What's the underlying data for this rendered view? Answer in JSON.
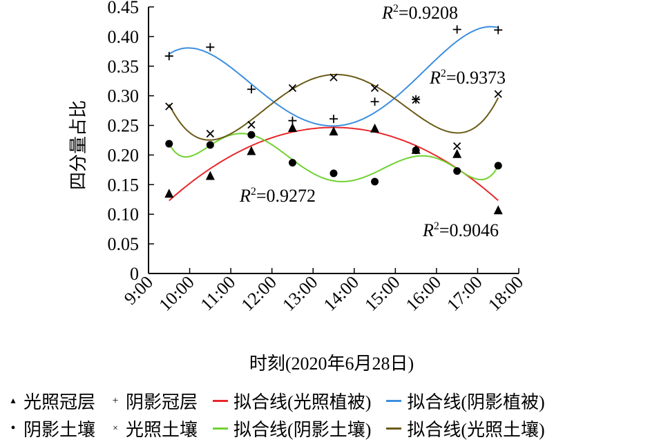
{
  "chart_data": {
    "type": "scatter",
    "xlabel": "时刻(2020年6月28日)",
    "ylabel": "四分量占比",
    "x_ticks": [
      "9:00",
      "10:00",
      "11:00",
      "12:00",
      "13:00",
      "14:00",
      "15:00",
      "16:00",
      "17:00",
      "18:00"
    ],
    "xlim": [
      9,
      18
    ],
    "ylim": [
      0,
      0.45
    ],
    "y_ticks": [
      "0",
      "0.05",
      "0.10",
      "0.15",
      "0.20",
      "0.25",
      "0.30",
      "0.35",
      "0.40",
      "0.45"
    ],
    "grid": false,
    "legend_position": "bottom",
    "x": [
      "9:30",
      "10:30",
      "11:30",
      "12:30",
      "13:30",
      "14:30",
      "15:30",
      "16:30",
      "17:30"
    ],
    "series": [
      {
        "name": "光照冠层",
        "marker": "triangle",
        "color": "#000000",
        "values": [
          0.135,
          0.165,
          0.207,
          0.246,
          0.24,
          0.245,
          0.209,
          0.202,
          0.107
        ]
      },
      {
        "name": "阴影冠层",
        "marker": "plus",
        "color": "#000000",
        "values": [
          0.367,
          0.382,
          0.311,
          0.258,
          0.261,
          0.29,
          0.294,
          0.412,
          0.411
        ]
      },
      {
        "name": "阴影土壤",
        "marker": "circle",
        "color": "#000000",
        "values": [
          0.219,
          0.217,
          0.234,
          0.187,
          0.169,
          0.155,
          0.208,
          0.173,
          0.182
        ]
      },
      {
        "name": "光照土壤",
        "marker": "cross",
        "color": "#000000",
        "values": [
          0.282,
          0.236,
          0.251,
          0.313,
          0.331,
          0.313,
          0.293,
          0.215,
          0.303
        ]
      }
    ],
    "fits": [
      {
        "name": "拟合线(光照植被)",
        "color": "#e8262a",
        "source": "光照冠层",
        "type": "polynomial",
        "degree": 2,
        "r2_label": "R2=0.9046",
        "r2_value": "=0.9046"
      },
      {
        "name": "拟合线(阴影植被)",
        "color": "#3b8ee0",
        "source": "阴影冠层",
        "type": "polynomial",
        "degree": 4,
        "r2_label": "R2=0.9208",
        "r2_value": "=0.9208"
      },
      {
        "name": "拟合线(阴影土壤)",
        "color": "#6fd230",
        "source": "阴影土壤",
        "type": "polynomial",
        "degree": 6,
        "r2_label": "R2=0.9272",
        "r2_value": "=0.9272"
      },
      {
        "name": "拟合线(光照土壤)",
        "color": "#6b5a16",
        "source": "光照土壤",
        "type": "polynomial",
        "degree": 4,
        "r2_label": "R2=0.9373",
        "r2_value": "=0.9373"
      }
    ]
  },
  "legend": {
    "rows": [
      [
        {
          "label": "光照冠层",
          "symbol": "▴"
        },
        {
          "label": "阴影冠层",
          "symbol": "+"
        },
        {
          "label": "拟合线(光照植被)",
          "line_color": "#e8262a"
        },
        {
          "label": "拟合线(阴影植被)",
          "line_color": "#3b8ee0"
        }
      ],
      [
        {
          "label": "阴影土壤",
          "symbol": "•"
        },
        {
          "label": "光照土壤",
          "symbol": "×"
        },
        {
          "label": "拟合线(阴影土壤)",
          "line_color": "#6fd230"
        },
        {
          "label": "拟合线(光照土壤)",
          "line_color": "#6b5a16"
        }
      ]
    ]
  }
}
